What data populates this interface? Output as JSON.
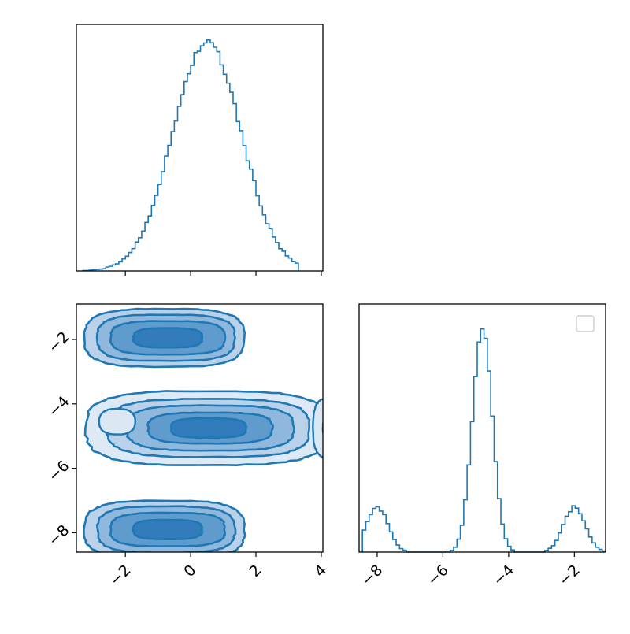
{
  "colors": {
    "series": "#1f77b4",
    "fill_levels": [
      "#dbe8f3",
      "#b6d0e8",
      "#8db6dc",
      "#5e99cc",
      "#2f7ab9"
    ],
    "axes": "#000000",
    "background": "#ffffff"
  },
  "chart_data": [
    {
      "type": "histogram",
      "panel": "top-left",
      "variable": "x0",
      "xlim": [
        -3.5,
        4.05
      ],
      "y_ticks_visible": false,
      "x_tick_labels_visible": false,
      "x_ticks": [
        -2,
        0,
        2,
        4
      ],
      "bin_edges_range": [
        -3.3,
        3.3
      ],
      "bin_count": 66,
      "approx_mean": 0.5,
      "approx_std": 1.05,
      "peak_relative_height": 1.0
    },
    {
      "type": "contour",
      "panel": "bottom-left",
      "x_variable": "x0",
      "y_variable": "x1",
      "xlim": [
        -3.5,
        4.05
      ],
      "ylim": [
        -8.6,
        -0.9
      ],
      "x_ticks": [
        -2,
        0,
        2,
        4
      ],
      "x_tick_labels": [
        "−2",
        "0",
        "2",
        "4"
      ],
      "y_ticks": [
        -2,
        -4,
        -6,
        -8
      ],
      "y_tick_labels": [
        "−2",
        "−4",
        "−6",
        "−8"
      ],
      "contour_levels": 5,
      "modes": [
        {
          "x_center": 0.5,
          "y_center": -4.75,
          "relative_weight": 1.0
        },
        {
          "x_center": -0.6,
          "y_center": -1.95,
          "relative_weight": 0.55
        },
        {
          "x_center": -0.6,
          "y_center": -7.9,
          "relative_weight": 0.55
        }
      ]
    },
    {
      "type": "histogram",
      "panel": "bottom-right",
      "variable": "x1",
      "xlim": [
        -8.55,
        -1.05
      ],
      "x_ticks": [
        -8,
        -6,
        -4,
        -2
      ],
      "x_tick_labels": [
        "−8",
        "−6",
        "−4",
        "−2"
      ],
      "y_ticks_visible": false,
      "legend": {
        "placement": "top-right",
        "entries": []
      },
      "peaks": [
        {
          "center": -8.0,
          "relative_height": 0.2
        },
        {
          "center": -4.8,
          "relative_height": 1.0
        },
        {
          "center": -2.0,
          "relative_height": 0.2
        }
      ]
    }
  ]
}
